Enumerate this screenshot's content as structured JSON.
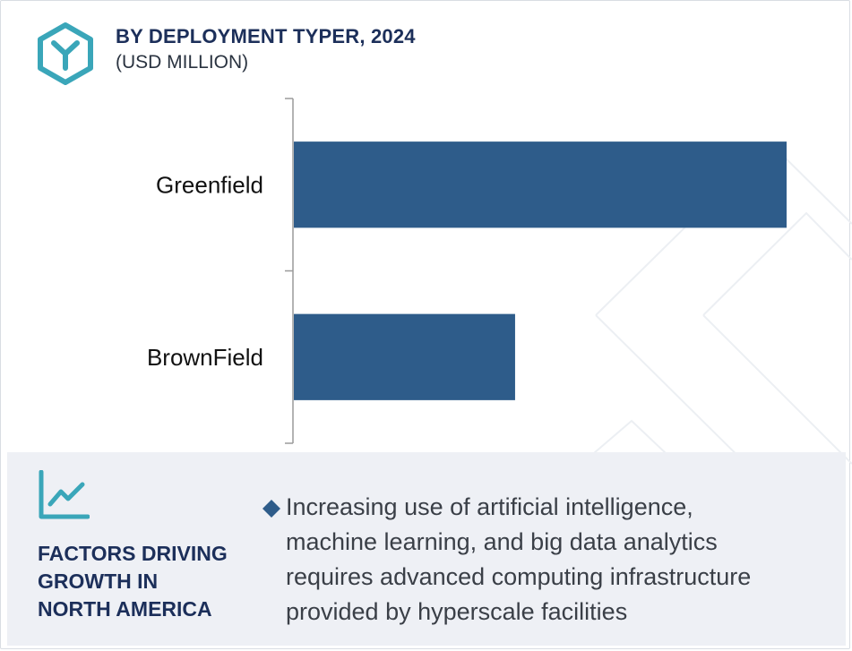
{
  "header": {
    "title": "BY DEPLOYMENT TYPER, 2024",
    "subtitle": "(USD MILLION)",
    "logo_icon": "hexagon-y-logo-icon"
  },
  "colors": {
    "bar": "#2e5c8a",
    "title": "#1c2f5a",
    "accent": "#3aa6b9",
    "panel_bg": "#eef0f5"
  },
  "chart_data": {
    "type": "bar",
    "orientation": "horizontal",
    "title": "BY DEPLOYMENT TYPER, 2024",
    "subtitle": "(USD MILLION)",
    "categories": [
      "Greenfield",
      "BrownField"
    ],
    "values": [
      100,
      45
    ],
    "xlim": [
      0,
      100
    ],
    "grid": false,
    "legend": "none"
  },
  "factors": {
    "heading_lines": [
      "FACTORS DRIVING",
      "GROWTH IN",
      "NORTH AMERICA"
    ],
    "icon": "line-chart-icon",
    "bullet_icon": "diamond-bullet-icon",
    "bullet_lines": [
      "Increasing use of artificial intelligence,",
      "machine learning, and big data analytics",
      "requires advanced computing infrastructure",
      "provided by hyperscale facilities"
    ]
  }
}
